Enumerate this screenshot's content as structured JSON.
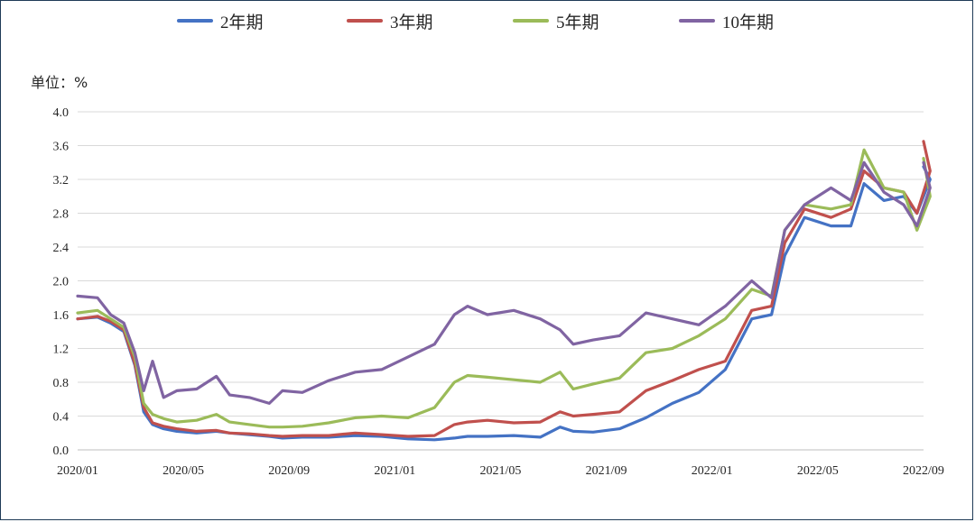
{
  "legend": [
    {
      "label": "2年期",
      "color": "#4472c4"
    },
    {
      "label": "3年期",
      "color": "#c0504d"
    },
    {
      "label": "5年期",
      "color": "#9bbb59"
    },
    {
      "label": "10年期",
      "color": "#8064a2"
    }
  ],
  "unit_label": "单位：%",
  "chart_data": {
    "type": "line",
    "title": "",
    "xlabel": "",
    "ylabel": "单位：%",
    "ylim": [
      0,
      4.0
    ],
    "y_ticks": [
      "0.0",
      "0.4",
      "0.8",
      "1.2",
      "1.6",
      "2.0",
      "2.4",
      "2.8",
      "3.2",
      "3.6",
      "4.0"
    ],
    "x_ticks": [
      "2020/01",
      "2020/05",
      "2020/09",
      "2021/01",
      "2021/05",
      "2021/09",
      "2022/01",
      "2022/05",
      "2022/09"
    ],
    "grid": "horizontal",
    "legend_position": "top",
    "x": [
      "2020/01",
      "2020/01",
      "2020/02",
      "2020/02",
      "2020/03",
      "2020/03",
      "2020/03",
      "2020/04",
      "2020/04",
      "2020/05",
      "2020/06",
      "2020/06",
      "2020/07",
      "2020/08",
      "2020/08",
      "2020/09",
      "2020/10",
      "2020/11",
      "2020/12",
      "2021/01",
      "2021/02",
      "2021/03",
      "2021/03",
      "2021/04",
      "2021/05",
      "2021/06",
      "2021/07",
      "2021/07",
      "2021/08",
      "2021/09",
      "2021/10",
      "2021/11",
      "2021/12",
      "2022/01",
      "2022/02",
      "2022/03",
      "2022/03",
      "2022/04",
      "2022/05",
      "2022/06",
      "2022/06",
      "2022/07",
      "2022/08",
      "2022/08",
      "2022/09",
      "2022/09"
    ],
    "series": [
      {
        "name": "2年期",
        "color": "#4472c4",
        "values": [
          1.55,
          1.57,
          1.5,
          1.4,
          1.0,
          0.45,
          0.3,
          0.25,
          0.22,
          0.2,
          0.22,
          0.2,
          0.18,
          0.16,
          0.14,
          0.15,
          0.15,
          0.17,
          0.16,
          0.13,
          0.12,
          0.14,
          0.16,
          0.16,
          0.17,
          0.15,
          0.27,
          0.22,
          0.21,
          0.25,
          0.38,
          0.55,
          0.68,
          0.95,
          1.55,
          1.6,
          2.3,
          2.75,
          2.65,
          2.65,
          3.15,
          2.95,
          3.0,
          2.8,
          3.2,
          3.35
        ]
      },
      {
        "name": "3年期",
        "color": "#c0504d",
        "values": [
          1.55,
          1.58,
          1.52,
          1.42,
          1.02,
          0.5,
          0.32,
          0.28,
          0.25,
          0.22,
          0.23,
          0.2,
          0.19,
          0.17,
          0.16,
          0.17,
          0.17,
          0.2,
          0.18,
          0.16,
          0.17,
          0.3,
          0.33,
          0.35,
          0.32,
          0.33,
          0.45,
          0.4,
          0.42,
          0.45,
          0.7,
          0.82,
          0.95,
          1.05,
          1.65,
          1.7,
          2.45,
          2.85,
          2.75,
          2.85,
          3.3,
          3.1,
          3.05,
          2.8,
          3.3,
          3.65
        ]
      },
      {
        "name": "5年期",
        "color": "#9bbb59",
        "values": [
          1.62,
          1.65,
          1.55,
          1.45,
          1.1,
          0.55,
          0.42,
          0.37,
          0.33,
          0.35,
          0.42,
          0.33,
          0.3,
          0.27,
          0.27,
          0.28,
          0.32,
          0.38,
          0.4,
          0.38,
          0.5,
          0.8,
          0.88,
          0.86,
          0.83,
          0.8,
          0.92,
          0.72,
          0.78,
          0.85,
          1.15,
          1.2,
          1.35,
          1.55,
          1.9,
          1.82,
          2.6,
          2.9,
          2.85,
          2.9,
          3.55,
          3.1,
          3.05,
          2.6,
          3.0,
          3.45
        ]
      },
      {
        "name": "10年期",
        "color": "#8064a2",
        "values": [
          1.82,
          1.8,
          1.6,
          1.5,
          1.15,
          0.7,
          1.05,
          0.62,
          0.7,
          0.72,
          0.87,
          0.65,
          0.62,
          0.55,
          0.7,
          0.68,
          0.82,
          0.92,
          0.95,
          1.1,
          1.25,
          1.6,
          1.7,
          1.6,
          1.65,
          1.55,
          1.42,
          1.25,
          1.3,
          1.35,
          1.62,
          1.55,
          1.48,
          1.7,
          2.0,
          1.8,
          2.6,
          2.9,
          3.1,
          2.95,
          3.4,
          3.05,
          2.9,
          2.65,
          3.1,
          3.4
        ]
      }
    ]
  }
}
